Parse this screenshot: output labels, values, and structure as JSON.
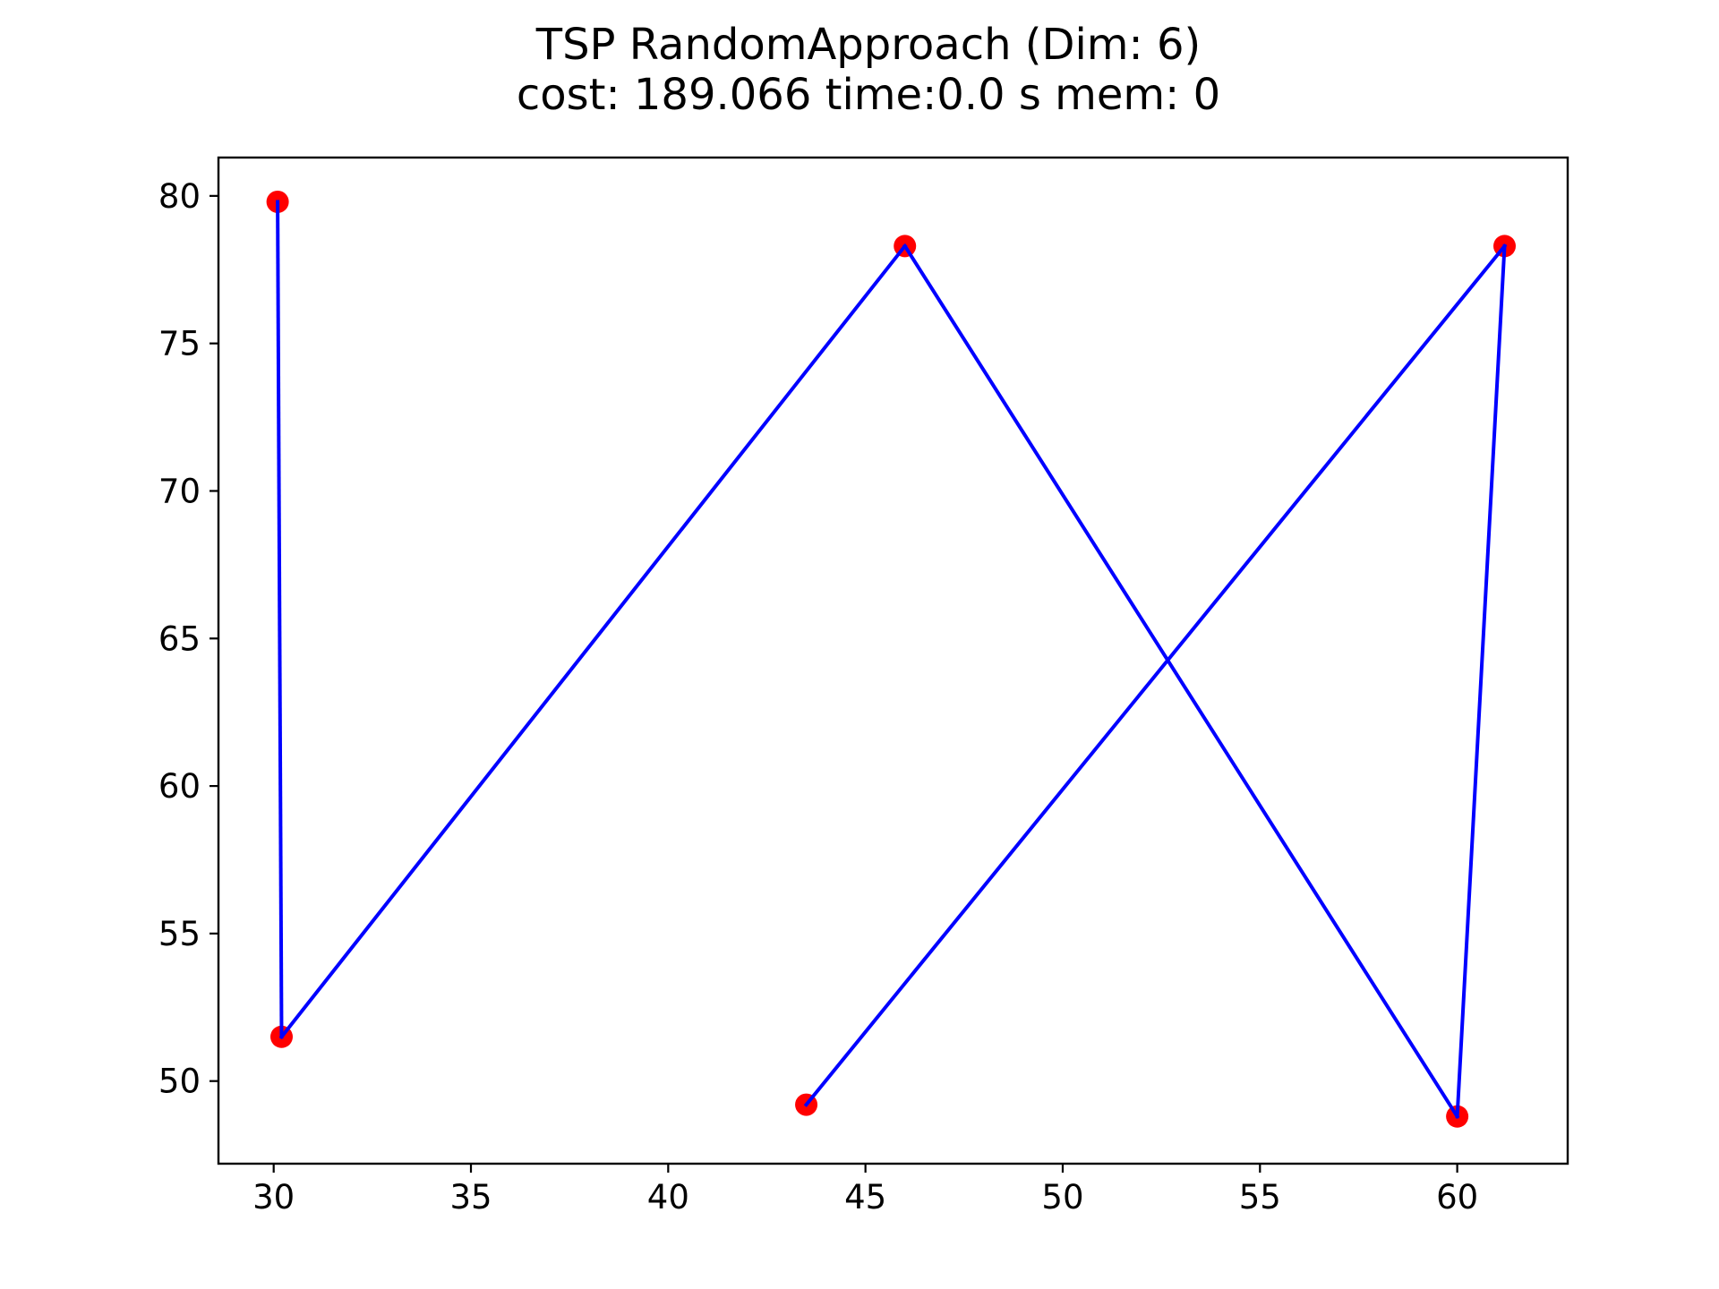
{
  "chart_data": {
    "type": "scatter",
    "title_lines": [
      "TSP RandomApproach (Dim: 6)",
      "cost: 189.066   time:0.0 s   mem: 0"
    ],
    "xlabel": "",
    "ylabel": "",
    "xlim": [
      28.6,
      62.8
    ],
    "ylim": [
      47.2,
      81.3
    ],
    "xticks": [
      30,
      35,
      40,
      45,
      50,
      55,
      60
    ],
    "yticks": [
      50,
      55,
      60,
      65,
      70,
      75,
      80
    ],
    "grid": false,
    "legend": "none",
    "points": [
      {
        "x": 30.1,
        "y": 79.8
      },
      {
        "x": 30.2,
        "y": 51.5
      },
      {
        "x": 46.0,
        "y": 78.3
      },
      {
        "x": 60.0,
        "y": 48.8
      },
      {
        "x": 61.2,
        "y": 78.3
      },
      {
        "x": 43.5,
        "y": 49.2
      }
    ],
    "route_order": [
      0,
      1,
      2,
      3,
      4,
      5
    ],
    "point_color": "#ff0000",
    "line_color": "#0000ff"
  }
}
